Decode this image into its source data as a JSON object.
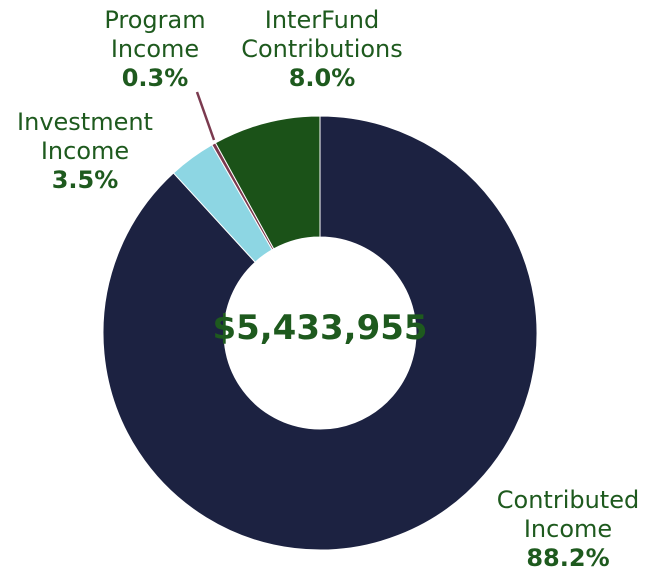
{
  "chart_data": {
    "type": "donut",
    "categories": [
      "Contributed Income",
      "Investment Income",
      "Program Income",
      "InterFund Contributions"
    ],
    "values": [
      88.2,
      3.5,
      0.3,
      8.0
    ],
    "value_labels": [
      "88.2%",
      "3.5%",
      "0.3%",
      "8.0%"
    ],
    "colors": [
      "#1c2241",
      "#8dd6e3",
      "#7b3a4f",
      "#1b5218"
    ],
    "center_label": "$5,433,955"
  }
}
